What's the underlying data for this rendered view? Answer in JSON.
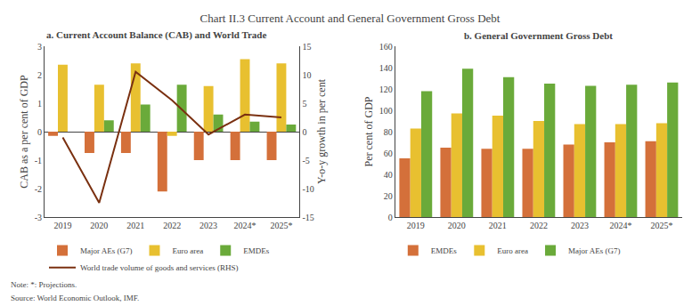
{
  "title": "Chart II.3 Current Account and General Government Gross Debt",
  "annotations": [
    "Note: *: Projections.",
    "Source: World Economic Outlook, IMF."
  ],
  "chart_data": [
    {
      "type": "bar",
      "title": "a. Current Account Balance (CAB) and World Trade",
      "categories": [
        "2019",
        "2020",
        "2021",
        "2022",
        "2023",
        "2024*",
        "2025*"
      ],
      "ylabel": "CAB as a per cent of GDP",
      "y2label": "Y-o-y growth in per cent",
      "ylim": [
        -3,
        3
      ],
      "yticks": [
        -3,
        -2,
        -1,
        0,
        1,
        2,
        3
      ],
      "y2lim": [
        -15,
        15
      ],
      "y2ticks": [
        -15,
        -10,
        -5,
        0,
        5,
        10,
        15
      ],
      "grid": false,
      "legend": "bottom",
      "series": [
        {
          "name": "Major AEs (G7)",
          "color": "#d4703a",
          "values": [
            -0.15,
            -0.75,
            -0.75,
            -2.1,
            -1.0,
            -1.0,
            -1.0
          ]
        },
        {
          "name": "Euro area",
          "color": "#e8c030",
          "values": [
            2.35,
            1.65,
            2.4,
            -0.15,
            1.6,
            2.55,
            2.4
          ]
        },
        {
          "name": "EMDEs",
          "color": "#6aaa3a",
          "values": [
            0.0,
            0.4,
            0.95,
            1.65,
            0.6,
            0.35,
            0.25
          ]
        },
        {
          "name": "World trade volume of goods and services (RHS)",
          "type": "line",
          "axis": "y2",
          "color": "#7a3010",
          "values": [
            -1.0,
            -12.5,
            10.5,
            5.5,
            -0.5,
            3.0,
            2.5
          ]
        }
      ]
    },
    {
      "type": "bar",
      "title": "b. General Government Gross Debt",
      "categories": [
        "2019",
        "2020",
        "2021",
        "2022",
        "2023",
        "2024*",
        "2025*"
      ],
      "ylabel": "Per cent of GDP",
      "ylim": [
        0,
        160
      ],
      "yticks": [
        0,
        20,
        40,
        60,
        80,
        100,
        120,
        140,
        160
      ],
      "grid": false,
      "legend": "bottom",
      "series": [
        {
          "name": "EMDEs",
          "color": "#d4703a",
          "values": [
            55,
            65,
            64,
            64,
            68,
            70,
            71
          ]
        },
        {
          "name": "Euro area",
          "color": "#e8c030",
          "values": [
            83,
            97,
            95,
            90,
            87,
            87,
            88
          ]
        },
        {
          "name": "Major AEs (G7)",
          "color": "#6aaa3a",
          "values": [
            118,
            139,
            131,
            125,
            123,
            124,
            126
          ]
        }
      ]
    }
  ]
}
